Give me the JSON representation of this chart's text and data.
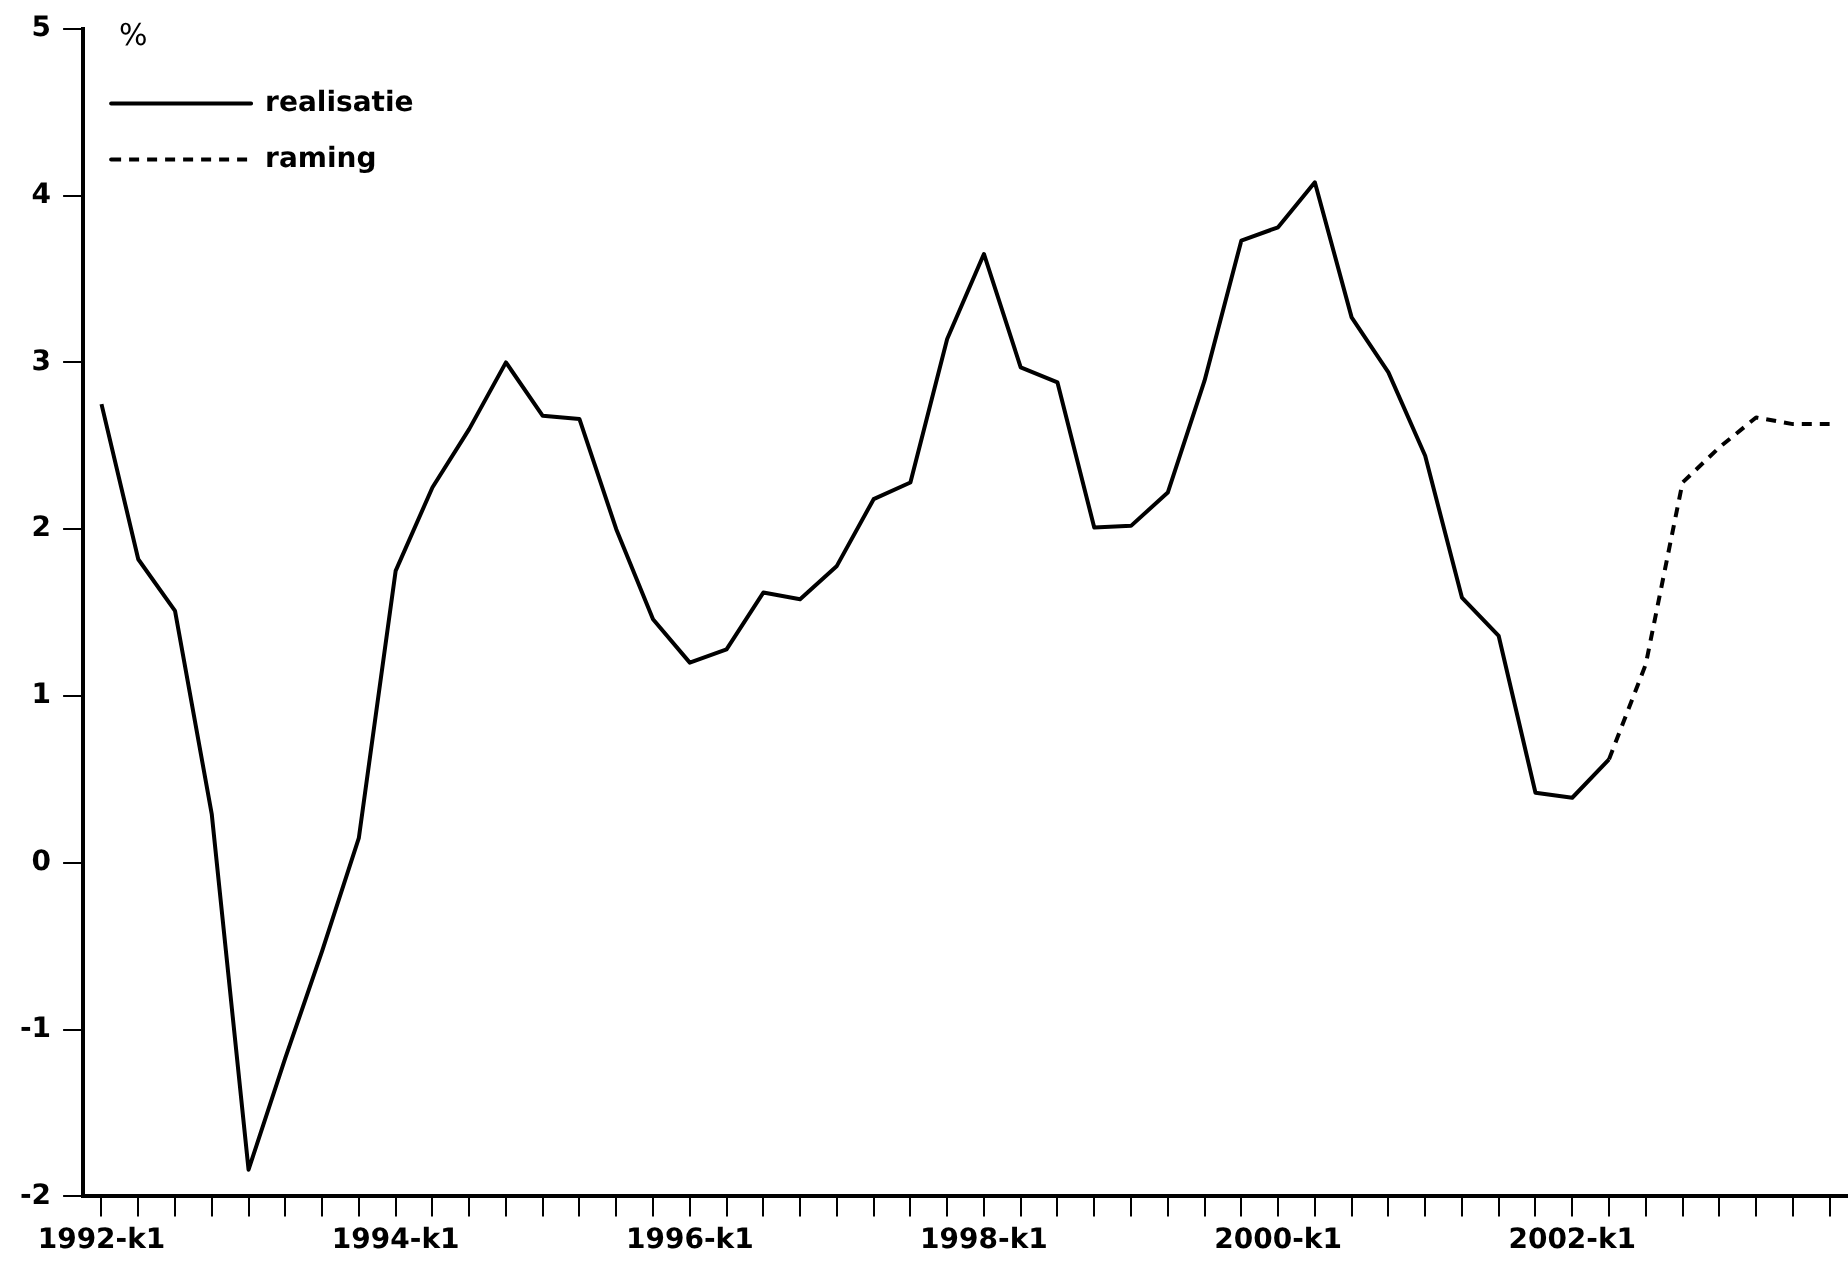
{
  "chart_data": {
    "type": "line",
    "ylabel": "%",
    "categories": [
      "1992-k1",
      null,
      null,
      null,
      null,
      null,
      null,
      null,
      "1994-k1",
      null,
      null,
      null,
      null,
      null,
      null,
      null,
      "1996-k1",
      null,
      null,
      null,
      null,
      null,
      null,
      null,
      "1998-k1",
      null,
      null,
      null,
      null,
      null,
      null,
      null,
      "2000-k1",
      null,
      null,
      null,
      null,
      null,
      null,
      null,
      "2002-k1",
      null,
      null,
      null,
      null,
      null,
      null,
      null
    ],
    "series": [
      {
        "name": "realisatie",
        "color": "#000000",
        "line_style": "solid",
        "values": [
          2.75,
          1.82,
          1.51,
          0.29,
          -1.84,
          -1.17,
          -0.53,
          0.15,
          1.75,
          2.25,
          2.6,
          3.0,
          2.68,
          2.66,
          2.0,
          1.46,
          1.2,
          1.28,
          1.62,
          1.58,
          1.78,
          2.18,
          2.28,
          3.14,
          3.65,
          2.97,
          2.88,
          2.01,
          2.02,
          2.22,
          2.89,
          3.73,
          3.81,
          4.08,
          3.27,
          2.94,
          2.44,
          1.59,
          1.36,
          0.42,
          0.39,
          0.62,
          null,
          null,
          null,
          null,
          null,
          null
        ]
      },
      {
        "name": "raming",
        "color": "#000000",
        "line_style": "dashed",
        "values": [
          null,
          null,
          null,
          null,
          null,
          null,
          null,
          null,
          null,
          null,
          null,
          null,
          null,
          null,
          null,
          null,
          null,
          null,
          null,
          null,
          null,
          null,
          null,
          null,
          null,
          null,
          null,
          null,
          null,
          null,
          null,
          null,
          null,
          null,
          null,
          null,
          null,
          null,
          null,
          null,
          null,
          0.62,
          1.19,
          2.28,
          2.49,
          2.67,
          2.63,
          2.63
        ]
      }
    ],
    "ylim": [
      -2,
      5
    ],
    "yticks": [
      -2,
      -1,
      0,
      1,
      2,
      3,
      4,
      5
    ],
    "grid": false,
    "legend": "top left",
    "marker": "none"
  }
}
